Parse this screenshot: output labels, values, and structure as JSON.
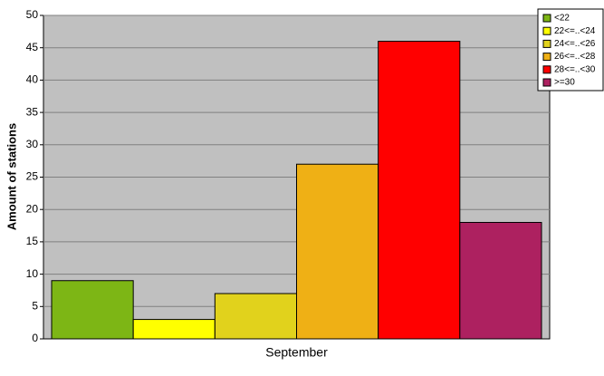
{
  "chart_data": {
    "type": "bar",
    "categories": [
      "September"
    ],
    "y_label": "Amount of stations",
    "series": [
      {
        "name": "<22",
        "color": "#7db615",
        "values": [
          9
        ]
      },
      {
        "name": "22<=..<24",
        "color": "#ffff00",
        "values": [
          3
        ]
      },
      {
        "name": "24<=..<26",
        "color": "#e1d21c",
        "values": [
          7
        ]
      },
      {
        "name": "26<=..<28",
        "color": "#efb015",
        "values": [
          27
        ]
      },
      {
        "name": "28<=..<30",
        "color": "#ff0000",
        "values": [
          46
        ]
      },
      {
        "name": ">=30",
        "color": "#ad2160",
        "values": [
          18
        ]
      }
    ],
    "ylim": [
      0,
      50
    ],
    "yticks": [
      0,
      5,
      10,
      15,
      20,
      25,
      30,
      35,
      40,
      45,
      50
    ],
    "grid": true,
    "legend": "top-right"
  }
}
